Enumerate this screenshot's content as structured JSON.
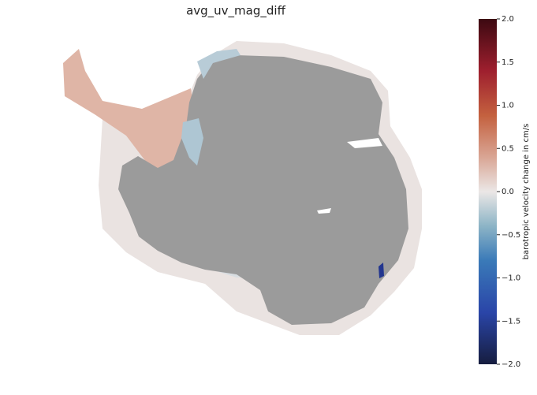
{
  "title": "avg_uv_mag_diff",
  "colorbar": {
    "label": "barotropic velocity change in cm/s",
    "lim": [
      -2,
      2
    ],
    "ticks": [
      {
        "value": 2,
        "label": "2.0"
      },
      {
        "value": 1.5,
        "label": "1.5"
      },
      {
        "value": 1,
        "label": "1.0"
      },
      {
        "value": 0.5,
        "label": "0.5"
      },
      {
        "value": 0,
        "label": "0.0"
      },
      {
        "value": -0.5,
        "label": "−0.5"
      },
      {
        "value": -1,
        "label": "−1.0"
      },
      {
        "value": -1.5,
        "label": "−1.5"
      },
      {
        "value": -2,
        "label": "−2.0"
      }
    ]
  }
}
